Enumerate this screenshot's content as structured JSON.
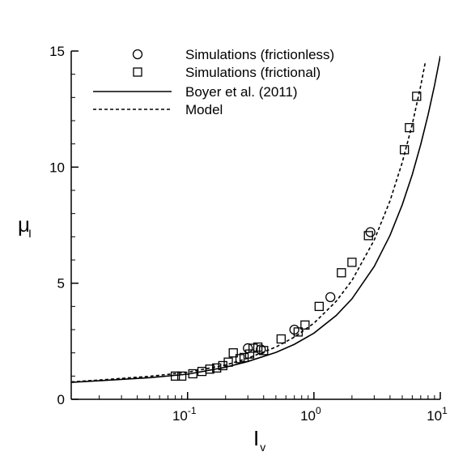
{
  "chart_data": {
    "type": "scatter",
    "xlabel": "I",
    "xlabel_sub": "v",
    "ylabel": "μ",
    "ylabel_sub": "I",
    "xscale": "log",
    "xlim": [
      0.012,
      10
    ],
    "ylim": [
      0,
      15
    ],
    "x_ticks": [
      {
        "value": 0.1,
        "base": "10",
        "exp": "-1"
      },
      {
        "value": 1,
        "base": "10",
        "exp": "0"
      },
      {
        "value": 10,
        "base": "10",
        "exp": "1"
      }
    ],
    "y_ticks": [
      0,
      5,
      10,
      15
    ],
    "legend_position": "top-center",
    "series": [
      {
        "name": "Simulations (frictionless)",
        "marker": "circle",
        "x": [
          0.3,
          0.38,
          0.7,
          1.35,
          2.8
        ],
        "y": [
          2.2,
          2.15,
          3.0,
          4.4,
          7.2
        ]
      },
      {
        "name": "Simulations (frictional)",
        "marker": "square",
        "x": [
          0.08,
          0.09,
          0.11,
          0.13,
          0.15,
          0.17,
          0.19,
          0.21,
          0.23,
          0.26,
          0.28,
          0.31,
          0.33,
          0.36,
          0.4,
          0.55,
          0.75,
          0.85,
          1.1,
          1.65,
          2.0,
          2.7,
          5.2,
          5.7,
          6.5
        ],
        "y": [
          1.0,
          1.0,
          1.1,
          1.2,
          1.3,
          1.35,
          1.45,
          1.6,
          2.0,
          1.75,
          1.8,
          1.95,
          2.2,
          2.25,
          2.1,
          2.6,
          2.9,
          3.2,
          4.0,
          5.45,
          5.9,
          7.05,
          10.75,
          11.7,
          13.05
        ]
      },
      {
        "name": "Boyer et al. (2011)",
        "line": "solid",
        "x": [
          0.012,
          0.02,
          0.05,
          0.1,
          0.2,
          0.3,
          0.5,
          0.7,
          1.0,
          1.5,
          2.0,
          3.0,
          4.0,
          5.0,
          6.0,
          7.0,
          8.0,
          9.0,
          10.0
        ],
        "y": [
          0.73,
          0.8,
          0.93,
          1.08,
          1.38,
          1.63,
          2.02,
          2.37,
          2.85,
          3.61,
          4.33,
          5.72,
          7.06,
          8.38,
          9.68,
          10.97,
          12.25,
          13.52,
          14.79
        ]
      },
      {
        "name": "Model",
        "line": "dashed",
        "x": [
          0.012,
          0.02,
          0.05,
          0.1,
          0.2,
          0.3,
          0.5,
          0.7,
          1.0,
          1.5,
          2.0,
          3.0,
          4.0,
          5.0,
          6.0,
          7.0,
          7.6
        ],
        "y": [
          0.75,
          0.83,
          0.99,
          1.16,
          1.48,
          1.77,
          2.25,
          2.68,
          3.28,
          4.22,
          5.12,
          6.86,
          8.55,
          10.2,
          11.85,
          13.5,
          14.5
        ]
      }
    ]
  }
}
